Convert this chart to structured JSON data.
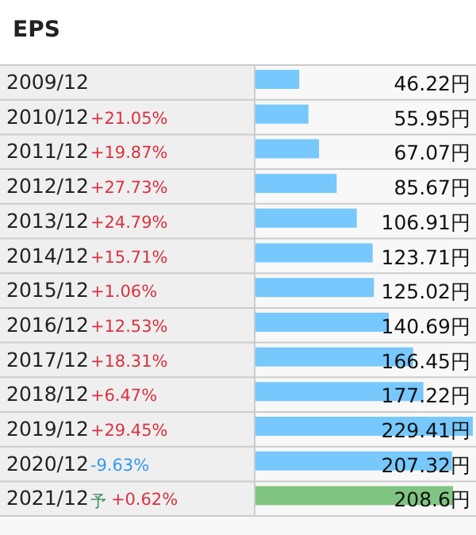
{
  "chart_data": {
    "type": "bar",
    "orientation": "horizontal",
    "title": "EPS",
    "categories": [
      "2009/12",
      "2010/12",
      "2011/12",
      "2012/12",
      "2013/12",
      "2014/12",
      "2015/12",
      "2016/12",
      "2017/12",
      "2018/12",
      "2019/12",
      "2020/12",
      "2021/12"
    ],
    "values": [
      46.22,
      55.95,
      67.07,
      85.67,
      106.91,
      123.71,
      125.02,
      140.69,
      166.45,
      177.22,
      229.41,
      207.32,
      208.6
    ],
    "value_labels": [
      "46.22円",
      "55.95円",
      "67.07円",
      "85.67円",
      "106.91円",
      "123.71円",
      "125.02円",
      "140.69円",
      "166.45円",
      "177.22円",
      "229.41円",
      "207.32円",
      "208.6円"
    ],
    "colors": [
      "#77c8fc",
      "#77c8fc",
      "#77c8fc",
      "#77c8fc",
      "#77c8fc",
      "#77c8fc",
      "#77c8fc",
      "#77c8fc",
      "#77c8fc",
      "#77c8fc",
      "#77c8fc",
      "#77c8fc",
      "#80c682"
    ],
    "annotations": [
      "+21.05%",
      "+19.87%",
      "+27.73%",
      "+24.79%",
      "+15.71%",
      "+1.06%",
      "+12.53%",
      "+18.31%",
      "+6.47%",
      "+29.45%",
      "-9.63%",
      "+0.62%",
      "予"
    ]
  }
}
